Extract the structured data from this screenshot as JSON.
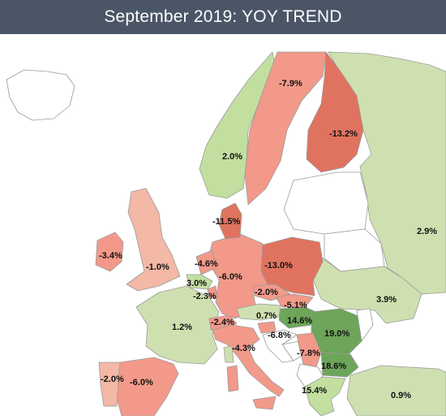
{
  "header": {
    "title": "September 2019: YOY TREND"
  },
  "colors": {
    "strong_negative": "#e0735f",
    "negative": "#f2998a",
    "mild_negative": "#f3b8a6",
    "slight_positive": "#cfe0b0",
    "positive": "#c2dfa0",
    "strong_positive": "#6da55a",
    "no_data": "#ffffff",
    "border": "#9a9a9a"
  },
  "countries": {
    "norway": "2.0%",
    "sweden": "-7.9%",
    "finland": "-13.2%",
    "russia": "2.9%",
    "denmark": "-11.5%",
    "ireland": "-3.4%",
    "uk": "-1.0%",
    "netherlands": "-4.6%",
    "germany": "-6.0%",
    "poland": "-13.0%",
    "belgium": "3.0%",
    "luxembourg": "-2.3%",
    "czechia": "-2.0%",
    "slovakia": "-5.1%",
    "ukraine": "3.9%",
    "france": "1.2%",
    "switzerland": "-2.4%",
    "austria": "0.7%",
    "hungary": "14.6%",
    "romania": "19.0%",
    "slovenia": "-6.8%",
    "italy": "-4.3%",
    "serbia": "-7.8%",
    "bulgaria": "18.6%",
    "portugal": "-2.0%",
    "spain": "-6.0%",
    "greece": "15.4%",
    "turkey": "0.9%"
  }
}
